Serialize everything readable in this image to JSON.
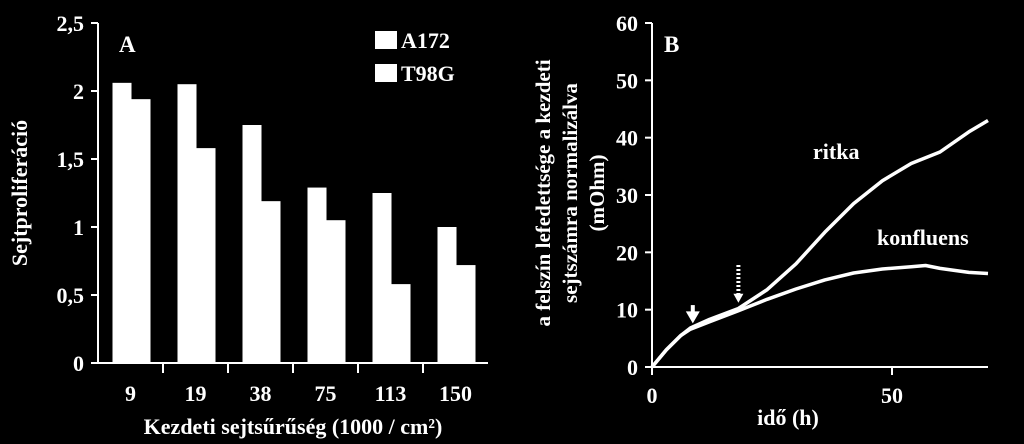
{
  "chart_data": [
    {
      "type": "bar",
      "panel_label": "A",
      "categories": [
        "9",
        "19",
        "38",
        "75",
        "113",
        "150"
      ],
      "series": [
        {
          "name": "A172",
          "values": [
            2.06,
            2.05,
            1.75,
            1.29,
            1.25,
            1.0
          ]
        },
        {
          "name": "T98G",
          "values": [
            1.94,
            1.58,
            1.19,
            1.05,
            0.58,
            0.72
          ]
        }
      ],
      "xlabel": "Kezdeti sejtsűrűség (1000 / cm²)",
      "ylabel": "Sejtproliferáció",
      "ylim": [
        0,
        2.5
      ],
      "yticks": [
        "0",
        "0,5",
        "1",
        "1,5",
        "2",
        "2,5"
      ],
      "legend": "top-right",
      "colors": {
        "bars": "#ffffff",
        "background": "#000000",
        "text": "#ffffff"
      }
    },
    {
      "type": "line",
      "panel_label": "B",
      "xlabel": "idő (h)",
      "ylabel_lines": [
        "a felszín lefedettsége a kezdeti",
        "sejtszámra normalizálva",
        "(mOhm)"
      ],
      "xlim": [
        0,
        70
      ],
      "ylim": [
        0,
        60
      ],
      "xticks": [
        "0",
        "50"
      ],
      "yticks": [
        "0",
        "10",
        "20",
        "30",
        "40",
        "50",
        "60"
      ],
      "series": [
        {
          "name": "ritka",
          "x": [
            0,
            3,
            6,
            8,
            12,
            18,
            24,
            30,
            36,
            42,
            48,
            54,
            60,
            66,
            70
          ],
          "y": [
            0,
            3,
            5.5,
            6.8,
            8.3,
            10.2,
            13.5,
            18,
            23.5,
            28.5,
            32.5,
            35.5,
            37.5,
            41,
            43
          ]
        },
        {
          "name": "konfluens",
          "x": [
            0,
            3,
            6,
            8,
            12,
            18,
            24,
            30,
            36,
            42,
            48,
            54,
            57,
            60,
            66,
            70
          ],
          "y": [
            0,
            3,
            5.5,
            6.6,
            7.9,
            9.8,
            11.8,
            13.6,
            15.2,
            16.4,
            17.1,
            17.5,
            17.7,
            17.2,
            16.5,
            16.3
          ]
        }
      ],
      "annotations": [
        {
          "type": "solid-arrow",
          "x": 8.5,
          "y_from": 10.8,
          "y_to": 7.6
        },
        {
          "type": "dotted-arrow",
          "x": 18,
          "y_from": 17.8,
          "y_to": 11.2
        }
      ],
      "colors": {
        "lines": "#ffffff",
        "background": "#000000",
        "text": "#ffffff"
      }
    }
  ]
}
